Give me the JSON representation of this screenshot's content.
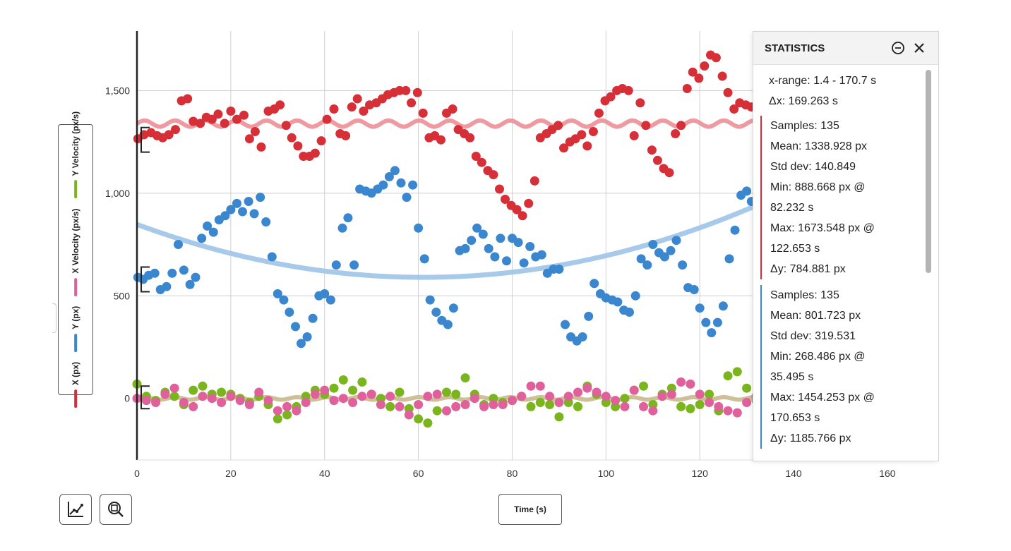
{
  "chart_data": {
    "type": "scatter",
    "xlabel": "Time (s)",
    "xlim": [
      0,
      170.7
    ],
    "ylim": [
      -300,
      1790
    ],
    "x_ticks": [
      0,
      20,
      40,
      60,
      80,
      100,
      120,
      140,
      160
    ],
    "y_ticks": [
      0,
      500,
      1000,
      1500
    ],
    "y_tick_labels": [
      "0",
      "500",
      "1,000",
      "1,500"
    ],
    "grid": true,
    "legend_placement": "left (vertical y-axis label)",
    "series": [
      {
        "name": "X (px)",
        "color": "#d62f37",
        "x": [
          0.2,
          1.5,
          3.0,
          4.3,
          5.5,
          6.8,
          8.2,
          9.5,
          10.8,
          12.0,
          13.5,
          14.8,
          16.0,
          17.3,
          18.7,
          20.0,
          21.3,
          22.8,
          24.0,
          25.2,
          26.5,
          28.0,
          29.3,
          30.5,
          31.8,
          33.0,
          34.3,
          35.5,
          36.8,
          38.0,
          39.3,
          40.5,
          42.0,
          43.3,
          44.5,
          45.8,
          47.0,
          48.3,
          49.6,
          51.0,
          52.3,
          53.5,
          54.8,
          56.0,
          57.3,
          58.5,
          59.8,
          61.0,
          62.3,
          63.5,
          64.8,
          66.0,
          67.3,
          68.5,
          69.8,
          71.0,
          72.3,
          73.5,
          74.8,
          76.0,
          77.3,
          78.5,
          79.8,
          81.0,
          82.2,
          83.5,
          84.8,
          86.0,
          87.3,
          88.5,
          89.8,
          91.0,
          92.3,
          93.5,
          94.8,
          96.0,
          97.3,
          98.5,
          99.8,
          101.0,
          102.3,
          103.5,
          104.8,
          106.0,
          107.3,
          108.5,
          109.8,
          111.0,
          112.3,
          113.5,
          114.8,
          116.0,
          117.3,
          118.5,
          119.8,
          121.0,
          122.3,
          123.5,
          124.8,
          126.0,
          127.3,
          128.5,
          129.8,
          131.0
        ],
        "y": [
          1265,
          1285,
          1295,
          1280,
          1270,
          1285,
          1310,
          1450,
          1460,
          1350,
          1340,
          1370,
          1360,
          1385,
          1340,
          1400,
          1360,
          1380,
          1265,
          1300,
          1225,
          1400,
          1410,
          1430,
          1330,
          1270,
          1230,
          1180,
          1180,
          1195,
          1255,
          1360,
          1410,
          1290,
          1280,
          1420,
          1460,
          1400,
          1430,
          1440,
          1460,
          1480,
          1490,
          1500,
          1500,
          1440,
          1490,
          1390,
          1270,
          1280,
          1260,
          1390,
          1410,
          1310,
          1290,
          1270,
          1180,
          1150,
          1110,
          1090,
          1020,
          970,
          940,
          920,
          890,
          950,
          1060,
          1270,
          1290,
          1310,
          1330,
          1220,
          1250,
          1265,
          1285,
          1230,
          1300,
          1390,
          1450,
          1470,
          1500,
          1510,
          1500,
          1280,
          1440,
          1330,
          1210,
          1160,
          1120,
          1100,
          1290,
          1330,
          1510,
          1590,
          1560,
          1620,
          1673,
          1660,
          1570,
          1490,
          1410,
          1440,
          1430,
          1420
        ]
      },
      {
        "name": "Y (px)",
        "color": "#3a87cf",
        "x": [
          0.2,
          1.3,
          2.5,
          3.8,
          5.0,
          6.3,
          7.5,
          8.8,
          10.0,
          11.3,
          12.5,
          13.8,
          15.0,
          16.3,
          17.5,
          18.8,
          20.0,
          21.3,
          22.5,
          23.8,
          25.0,
          26.3,
          27.5,
          28.8,
          30.0,
          31.3,
          32.5,
          33.8,
          35.0,
          36.3,
          37.5,
          38.8,
          40.0,
          41.3,
          42.5,
          43.8,
          45.0,
          46.3,
          47.5,
          48.8,
          50.0,
          51.3,
          52.5,
          53.8,
          55.0,
          56.3,
          57.5,
          58.8,
          60.0,
          61.3,
          62.5,
          63.8,
          65.0,
          66.3,
          67.5,
          68.8,
          70.0,
          71.3,
          72.5,
          73.8,
          75.0,
          76.3,
          77.5,
          78.8,
          80.0,
          81.3,
          82.5,
          83.8,
          85.0,
          86.3,
          87.5,
          88.8,
          90.0,
          91.3,
          92.5,
          93.8,
          95.0,
          96.3,
          97.5,
          98.8,
          100.0,
          101.3,
          102.5,
          103.8,
          105.0,
          106.3,
          107.5,
          108.8,
          110.0,
          111.3,
          112.5,
          113.8,
          115.0,
          116.3,
          117.5,
          118.8,
          120.0,
          121.3,
          122.5,
          123.8,
          125.0,
          126.3,
          127.5,
          128.8,
          130.0,
          131.0
        ],
        "y": [
          590,
          580,
          600,
          610,
          530,
          545,
          610,
          750,
          625,
          555,
          590,
          780,
          840,
          810,
          870,
          890,
          920,
          950,
          910,
          960,
          900,
          980,
          860,
          690,
          510,
          480,
          420,
          350,
          268,
          300,
          390,
          500,
          510,
          480,
          650,
          830,
          880,
          650,
          1020,
          1010,
          1000,
          1020,
          1040,
          1080,
          1110,
          1050,
          980,
          1040,
          830,
          680,
          480,
          420,
          380,
          360,
          440,
          720,
          730,
          770,
          830,
          800,
          730,
          690,
          780,
          670,
          780,
          760,
          660,
          740,
          690,
          700,
          610,
          630,
          630,
          360,
          300,
          280,
          300,
          400,
          560,
          510,
          490,
          480,
          470,
          430,
          420,
          500,
          680,
          650,
          750,
          710,
          690,
          720,
          770,
          650,
          540,
          530,
          440,
          370,
          320,
          370,
          450,
          680,
          820,
          990,
          1010,
          960
        ]
      },
      {
        "name": "X Velocity (px/s)",
        "color": "#e0609b",
        "x": [
          0,
          2,
          4,
          6,
          8,
          10,
          12,
          14,
          16,
          18,
          20,
          22,
          24,
          26,
          28,
          30,
          32,
          34,
          36,
          38,
          40,
          42,
          44,
          46,
          48,
          50,
          52,
          54,
          56,
          58,
          60,
          62,
          64,
          66,
          68,
          70,
          72,
          74,
          76,
          78,
          80,
          82,
          84,
          86,
          88,
          90,
          92,
          94,
          96,
          98,
          100,
          102,
          104,
          106,
          108,
          110,
          112,
          114,
          116,
          118,
          120,
          122,
          124,
          126,
          128,
          130,
          132
        ],
        "y": [
          0,
          -10,
          -20,
          20,
          50,
          -20,
          -40,
          10,
          0,
          -20,
          10,
          -10,
          -30,
          30,
          -10,
          -60,
          -40,
          -60,
          -20,
          20,
          40,
          -10,
          0,
          -20,
          10,
          20,
          -30,
          10,
          -40,
          -80,
          -30,
          10,
          20,
          -60,
          -40,
          -30,
          0,
          -40,
          -30,
          -30,
          -10,
          10,
          60,
          60,
          10,
          -20,
          10,
          30,
          50,
          30,
          10,
          -10,
          -40,
          40,
          -40,
          -60,
          10,
          20,
          80,
          70,
          20,
          -20,
          -40,
          -60,
          -70,
          -20,
          10
        ]
      },
      {
        "name": "Y Velocity (px/s)",
        "color": "#7ab51d",
        "x": [
          0,
          2,
          4,
          6,
          8,
          10,
          12,
          14,
          16,
          18,
          20,
          22,
          24,
          26,
          28,
          30,
          32,
          34,
          36,
          38,
          40,
          42,
          44,
          46,
          48,
          50,
          52,
          54,
          56,
          58,
          60,
          62,
          64,
          66,
          68,
          70,
          72,
          74,
          76,
          78,
          80,
          82,
          84,
          86,
          88,
          90,
          92,
          94,
          96,
          98,
          100,
          102,
          104,
          106,
          108,
          110,
          112,
          114,
          116,
          118,
          120,
          122,
          124,
          126,
          128,
          130,
          132
        ],
        "y": [
          70,
          10,
          -10,
          30,
          10,
          -30,
          40,
          60,
          20,
          30,
          20,
          0,
          -20,
          10,
          -30,
          -100,
          -80,
          -40,
          10,
          40,
          20,
          50,
          90,
          40,
          80,
          20,
          0,
          -40,
          30,
          -50,
          -100,
          -120,
          -60,
          30,
          20,
          100,
          20,
          -30,
          0,
          -20,
          -10,
          10,
          -40,
          -20,
          -30,
          -90,
          -20,
          -40,
          60,
          20,
          -20,
          -40,
          0,
          40,
          60,
          -30,
          20,
          50,
          -40,
          -50,
          -30,
          20,
          -60,
          110,
          130,
          50,
          -10
        ]
      }
    ],
    "fit_curves": [
      {
        "series": "X (px)",
        "color": "#ec8f96",
        "kind": "sinusoid",
        "mean": 1338.928,
        "amplitude": 15,
        "period": 6.5
      },
      {
        "series": "Y (px)",
        "color": "#9fc4e8",
        "kind": "quadratic",
        "vertex_x": 61,
        "vertex_y": 590,
        "value_at_0": 848
      },
      {
        "series": "X Velocity (px/s)",
        "color": "#c9b98d",
        "kind": "sinusoid",
        "mean": 0,
        "amplitude": 6,
        "period": 6.5
      }
    ]
  },
  "yaxis_legend": {
    "items": [
      {
        "label": "X (px)",
        "color": "#d62f37"
      },
      {
        "label": "Y (px)",
        "color": "#3a87cf"
      },
      {
        "label": "X Velocity (px/s)",
        "color": "#e0609b"
      },
      {
        "label": "Y Velocity (px/s)",
        "color": "#7ab51d"
      }
    ]
  },
  "xaxis_button": {
    "label": "Time (s)"
  },
  "tools": {
    "graph_icon": "graph-tool-icon",
    "zoom_icon": "zoom-icon"
  },
  "statistics": {
    "title": "STATISTICS",
    "collapse_icon": "minus-circle-icon",
    "close_icon": "close-icon",
    "range_lines": [
      "x-range: 1.4 - 170.7 s",
      "Δx: 169.263 s"
    ],
    "series": [
      {
        "color": "#d62f37",
        "lines": [
          "Samples: 135",
          "Mean: 1338.928 px",
          "Std dev: 140.849",
          "Min: 888.668 px @",
          "82.232 s",
          "Max: 1673.548 px @",
          "122.653 s",
          "Δy: 784.881 px"
        ]
      },
      {
        "color": "#3a87cf",
        "lines": [
          "Samples: 135",
          "Mean: 801.723 px",
          "Std dev: 319.531",
          "Min: 268.486 px @",
          "35.495 s",
          "Max: 1454.253 px @",
          "170.653 s",
          "Δy: 1185.766 px"
        ]
      }
    ]
  }
}
